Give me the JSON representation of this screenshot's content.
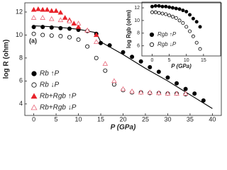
{
  "chart_data": [
    {
      "type": "scatter",
      "x_label": "P (GPa)",
      "y_label": "log R (ohm)",
      "annotation": "(a)",
      "xlim": [
        -2,
        42
      ],
      "ylim": [
        3,
        12.8
      ],
      "xticks": [
        0,
        5,
        10,
        15,
        20,
        25,
        30,
        35,
        40
      ],
      "yticks": [
        4,
        6,
        8,
        10,
        12
      ],
      "legend": "lower left",
      "series": [
        {
          "name": "Rb ↑P",
          "color": "#000000",
          "marker": "circle",
          "filled": true,
          "x": [
            0,
            2,
            4,
            6,
            8,
            10,
            12,
            14,
            15,
            17,
            20,
            22,
            24,
            26,
            28,
            30,
            32,
            34,
            36,
            38
          ],
          "values": [
            10.7,
            10.7,
            10.65,
            10.6,
            10.55,
            10.45,
            10.35,
            10.1,
            9.3,
            9.1,
            8.5,
            8.1,
            7.7,
            7.2,
            6.8,
            6.3,
            5.8,
            5.3,
            4.9,
            4.3
          ]
        },
        {
          "name": "Rb ↓P",
          "color": "#000000",
          "marker": "circle",
          "filled": false,
          "x": [
            0,
            2,
            4,
            6,
            8,
            10,
            12,
            14,
            16,
            18,
            20,
            22,
            24,
            26,
            28,
            30,
            32,
            34
          ],
          "values": [
            10.1,
            10.0,
            9.95,
            9.9,
            9.8,
            9.6,
            9.0,
            8.0,
            6.9,
            5.7,
            5.2,
            5.0,
            5.0,
            4.95,
            4.95,
            4.9,
            4.9,
            4.85
          ]
        },
        {
          "name": "Rb+Rgb ↑P",
          "color": "#e8232b",
          "marker": "triangle",
          "filled": true,
          "x": [
            0,
            1,
            2,
            3,
            4,
            5,
            6,
            7,
            8,
            9,
            10,
            12,
            14
          ],
          "values": [
            12.2,
            12.25,
            12.2,
            12.2,
            12.1,
            12.1,
            11.95,
            11.5,
            11.3,
            11.0,
            10.7,
            10.4,
            10.0
          ]
        },
        {
          "name": "Rb+Rgb ↓P",
          "color": "#e8687a",
          "marker": "triangle",
          "filled": false,
          "x": [
            0,
            2,
            4,
            6,
            8,
            10,
            12,
            14,
            16,
            18,
            20,
            22,
            24,
            26,
            28,
            30,
            32,
            34
          ],
          "values": [
            11.5,
            11.5,
            11.4,
            11.3,
            11.2,
            11.0,
            10.4,
            9.4,
            7.5,
            6.0,
            5.3,
            5.1,
            5.0,
            5.0,
            4.95,
            4.9,
            4.9,
            4.9
          ]
        }
      ],
      "fit_line": {
        "color": "#000000",
        "x": [
          0,
          5,
          10,
          14,
          15,
          20,
          25,
          30,
          35,
          40
        ],
        "values": [
          10.8,
          10.7,
          10.5,
          10.2,
          9.4,
          8.3,
          7.1,
          6.0,
          4.8,
          3.6
        ]
      }
    },
    {
      "type": "scatter",
      "x_label": "P (GPa)",
      "y_label": "log Rgb (ohm)",
      "xlim": [
        -3,
        20
      ],
      "ylim": [
        4.4,
        12.9
      ],
      "xticks": [
        0,
        5,
        10,
        15
      ],
      "yticks": [
        6,
        8,
        10,
        12
      ],
      "legend": "lower left",
      "series": [
        {
          "name": "Rgb ↑P",
          "color": "#000000",
          "marker": "circle",
          "filled": true,
          "x": [
            0,
            1,
            2,
            3,
            4,
            5,
            6,
            7,
            8,
            9,
            10,
            11,
            12,
            13,
            14
          ],
          "values": [
            12.2,
            12.3,
            12.3,
            12.2,
            12.2,
            12.1,
            12.0,
            11.9,
            11.8,
            11.6,
            11.4,
            10.9,
            10.3,
            9.8,
            9.0
          ]
        },
        {
          "name": "Rgb ↓P",
          "color": "#000000",
          "marker": "circle",
          "filled": false,
          "x": [
            0,
            1,
            2,
            3,
            4,
            5,
            6,
            7,
            8,
            9,
            10,
            11,
            12,
            13,
            14
          ],
          "values": [
            11.3,
            11.3,
            11.2,
            11.1,
            11.0,
            10.8,
            10.6,
            10.4,
            10.0,
            9.6,
            9.0,
            8.3,
            7.5,
            6.5,
            5.5
          ]
        }
      ]
    }
  ]
}
